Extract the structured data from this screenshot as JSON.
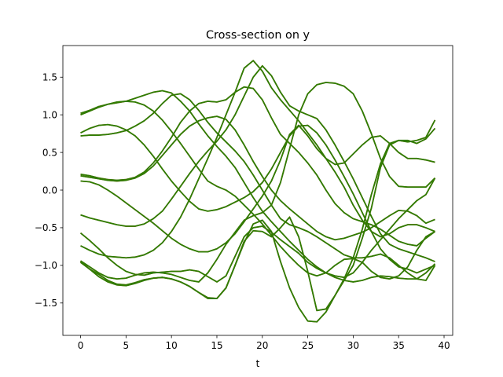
{
  "chart_data": {
    "type": "line",
    "title": "Cross-section on y",
    "xlabel": "t",
    "ylabel": "",
    "xlim": [
      -1.95,
      40.95
    ],
    "ylim": [
      -1.93,
      1.92
    ],
    "xticks": [
      0,
      5,
      10,
      15,
      20,
      25,
      30,
      35,
      40
    ],
    "yticks": [
      -1.5,
      -1.0,
      -0.5,
      0.0,
      0.5,
      1.0,
      1.5
    ],
    "ytick_labels": [
      "−1.5",
      "−1.0",
      "−0.5",
      "0.0",
      "0.5",
      "1.0",
      "1.5"
    ],
    "grid": false,
    "legend": "none",
    "colors": {
      "line_main": "#2e7d00",
      "line_under": "#d62728",
      "axes": "#000000"
    },
    "x": [
      0,
      1,
      2,
      3,
      4,
      5,
      6,
      7,
      8,
      9,
      10,
      11,
      12,
      13,
      14,
      15,
      16,
      17,
      18,
      19,
      20,
      21,
      22,
      23,
      24,
      25,
      26,
      27,
      28,
      29,
      30,
      31,
      32,
      33,
      34,
      35,
      36,
      37,
      38,
      39
    ],
    "series": [
      {
        "values": [
          1.02,
          1.06,
          1.11,
          1.14,
          1.16,
          1.18,
          1.22,
          1.26,
          1.3,
          1.32,
          1.29,
          1.18,
          1.05,
          0.88,
          0.72,
          0.58,
          0.45,
          0.3,
          0.1,
          -0.1,
          -0.28,
          -0.42,
          -0.55,
          -0.68,
          -0.8,
          -0.92,
          -1.02,
          -1.1,
          -1.16,
          -1.2,
          -1.22,
          -1.2,
          -1.16,
          -1.14,
          -1.15,
          -1.17,
          -1.18,
          -1.18,
          -1.1,
          -0.98
        ]
      },
      {
        "values": [
          1.0,
          1.05,
          1.1,
          1.14,
          1.17,
          1.18,
          1.17,
          1.13,
          1.05,
          0.93,
          0.78,
          0.62,
          0.45,
          0.28,
          0.12,
          0.05,
          0.0,
          -0.08,
          -0.2,
          -0.32,
          -0.45,
          -0.6,
          -0.75,
          -0.88,
          -1.0,
          -1.1,
          -1.14,
          -1.1,
          -1.0,
          -0.92,
          -0.91,
          -0.96,
          -1.08,
          -1.16,
          -1.18,
          -1.14,
          -1.02,
          -0.8,
          -0.62,
          -0.55
        ]
      },
      {
        "values": [
          0.76,
          0.82,
          0.86,
          0.87,
          0.85,
          0.8,
          0.72,
          0.6,
          0.45,
          0.28,
          0.12,
          -0.02,
          -0.15,
          -0.25,
          -0.28,
          -0.26,
          -0.22,
          -0.16,
          -0.1,
          -0.02,
          0.1,
          0.28,
          0.5,
          0.72,
          0.85,
          0.86,
          0.76,
          0.6,
          0.4,
          0.18,
          -0.05,
          -0.3,
          -0.55,
          -0.78,
          -0.92,
          -1.02,
          -1.05,
          -1.1,
          -1.05,
          -1.0
        ]
      },
      {
        "values": [
          0.72,
          0.73,
          0.73,
          0.74,
          0.76,
          0.79,
          0.85,
          0.92,
          1.02,
          1.15,
          1.26,
          1.28,
          1.2,
          1.06,
          0.9,
          0.76,
          0.64,
          0.52,
          0.38,
          0.2,
          0.0,
          -0.2,
          -0.38,
          -0.46,
          -0.5,
          -0.55,
          -0.62,
          -0.7,
          -0.78,
          -0.86,
          -0.9,
          -0.9,
          -0.88,
          -0.85,
          -0.9,
          -1.0,
          -1.1,
          -1.18,
          -1.2,
          -1.0
        ]
      },
      {
        "values": [
          0.21,
          0.19,
          0.16,
          0.14,
          0.13,
          0.14,
          0.17,
          0.24,
          0.36,
          0.52,
          0.7,
          0.9,
          1.05,
          1.15,
          1.18,
          1.17,
          1.2,
          1.3,
          1.37,
          1.35,
          1.2,
          0.96,
          0.74,
          0.62,
          0.5,
          0.36,
          0.2,
          0.0,
          -0.18,
          -0.3,
          -0.38,
          -0.42,
          -0.46,
          -0.52,
          -0.6,
          -0.68,
          -0.72,
          -0.74,
          -0.64,
          -0.55
        ]
      },
      {
        "values": [
          0.19,
          0.17,
          0.15,
          0.13,
          0.12,
          0.13,
          0.16,
          0.22,
          0.32,
          0.46,
          0.6,
          0.74,
          0.85,
          0.92,
          0.96,
          0.98,
          0.94,
          0.8,
          0.6,
          0.38,
          0.18,
          0.0,
          -0.14,
          -0.25,
          -0.35,
          -0.45,
          -0.55,
          -0.62,
          -0.66,
          -0.64,
          -0.6,
          -0.56,
          -0.5,
          -0.42,
          -0.34,
          -0.27,
          -0.28,
          -0.34,
          -0.44,
          -0.39
        ]
      },
      {
        "values": [
          0.12,
          0.11,
          0.07,
          0.0,
          -0.08,
          -0.17,
          -0.26,
          -0.35,
          -0.44,
          -0.54,
          -0.64,
          -0.72,
          -0.78,
          -0.82,
          -0.82,
          -0.78,
          -0.7,
          -0.58,
          -0.42,
          -0.25,
          -0.08,
          0.12,
          0.4,
          0.74,
          0.86,
          0.72,
          0.55,
          0.42,
          0.34,
          0.36,
          0.48,
          0.6,
          0.7,
          0.72,
          0.62,
          0.5,
          0.42,
          0.42,
          0.4,
          0.37
        ]
      },
      {
        "values": [
          -0.33,
          -0.37,
          -0.4,
          -0.43,
          -0.46,
          -0.48,
          -0.48,
          -0.45,
          -0.38,
          -0.28,
          -0.12,
          0.05,
          0.22,
          0.38,
          0.52,
          0.65,
          0.8,
          1.0,
          1.25,
          1.5,
          1.65,
          1.52,
          1.3,
          1.12,
          1.05,
          1.0,
          0.95,
          0.8,
          0.6,
          0.38,
          0.15,
          -0.1,
          -0.35,
          -0.58,
          -0.72,
          -0.78,
          -0.82,
          -0.86,
          -0.9,
          -0.95
        ]
      },
      {
        "values": [
          -0.57,
          -0.67,
          -0.78,
          -0.9,
          -1.0,
          -1.08,
          -1.12,
          -1.13,
          -1.1,
          -1.09,
          -1.08,
          -1.08,
          -1.06,
          -1.08,
          -1.15,
          -1.22,
          -1.14,
          -0.88,
          -0.62,
          -0.5,
          -0.48,
          -0.56,
          -0.66,
          -0.75,
          -0.84,
          -0.96,
          -1.04,
          -1.1,
          -1.14,
          -1.16,
          -1.1,
          -0.96,
          -0.8,
          -0.66,
          -0.52,
          -0.38,
          -0.26,
          -0.14,
          -0.06,
          0.16
        ]
      },
      {
        "values": [
          -0.74,
          -0.8,
          -0.85,
          -0.88,
          -0.89,
          -0.9,
          -0.89,
          -0.86,
          -0.8,
          -0.7,
          -0.55,
          -0.36,
          -0.12,
          0.15,
          0.42,
          0.7,
          1.0,
          1.3,
          1.62,
          1.72,
          1.58,
          1.36,
          1.2,
          1.06,
          0.92,
          0.76,
          0.6,
          0.42,
          0.24,
          0.04,
          -0.2,
          -0.4,
          -0.55,
          -0.62,
          -0.58,
          -0.5,
          -0.46,
          -0.46,
          -0.5,
          -0.55
        ]
      },
      {
        "values": [
          -0.94,
          -1.02,
          -1.1,
          -1.16,
          -1.18,
          -1.17,
          -1.13,
          -1.1,
          -1.09,
          -1.1,
          -1.12,
          -1.16,
          -1.2,
          -1.22,
          -1.1,
          -0.92,
          -0.72,
          -0.56,
          -0.4,
          -0.34,
          -0.3,
          -0.2,
          0.1,
          0.55,
          1.0,
          1.28,
          1.4,
          1.43,
          1.42,
          1.38,
          1.28,
          1.05,
          0.75,
          0.42,
          0.18,
          0.05,
          0.04,
          0.04,
          0.04,
          0.16
        ]
      },
      {
        "values": [
          -0.96,
          -1.05,
          -1.12,
          -1.2,
          -1.25,
          -1.26,
          -1.23,
          -1.19,
          -1.17,
          -1.16,
          -1.18,
          -1.22,
          -1.28,
          -1.36,
          -1.43,
          -1.44,
          -1.3,
          -1.0,
          -0.68,
          -0.54,
          -0.55,
          -0.62,
          -0.5,
          -0.36,
          -0.62,
          -1.08,
          -1.6,
          -1.58,
          -1.4,
          -1.2,
          -1.0,
          -0.64,
          -0.24,
          0.3,
          0.6,
          0.66,
          0.66,
          0.62,
          0.68,
          0.82
        ]
      },
      {
        "values": [
          -0.95,
          -1.05,
          -1.15,
          -1.22,
          -1.26,
          -1.27,
          -1.24,
          -1.2,
          -1.17,
          -1.16,
          -1.18,
          -1.22,
          -1.28,
          -1.36,
          -1.44,
          -1.44,
          -1.3,
          -1.0,
          -0.7,
          -0.45,
          -0.4,
          -0.55,
          -0.95,
          -1.3,
          -1.56,
          -1.74,
          -1.75,
          -1.62,
          -1.4,
          -1.18,
          -0.9,
          -0.52,
          -0.06,
          0.35,
          0.62,
          0.66,
          0.64,
          0.66,
          0.7,
          0.93
        ]
      }
    ]
  }
}
